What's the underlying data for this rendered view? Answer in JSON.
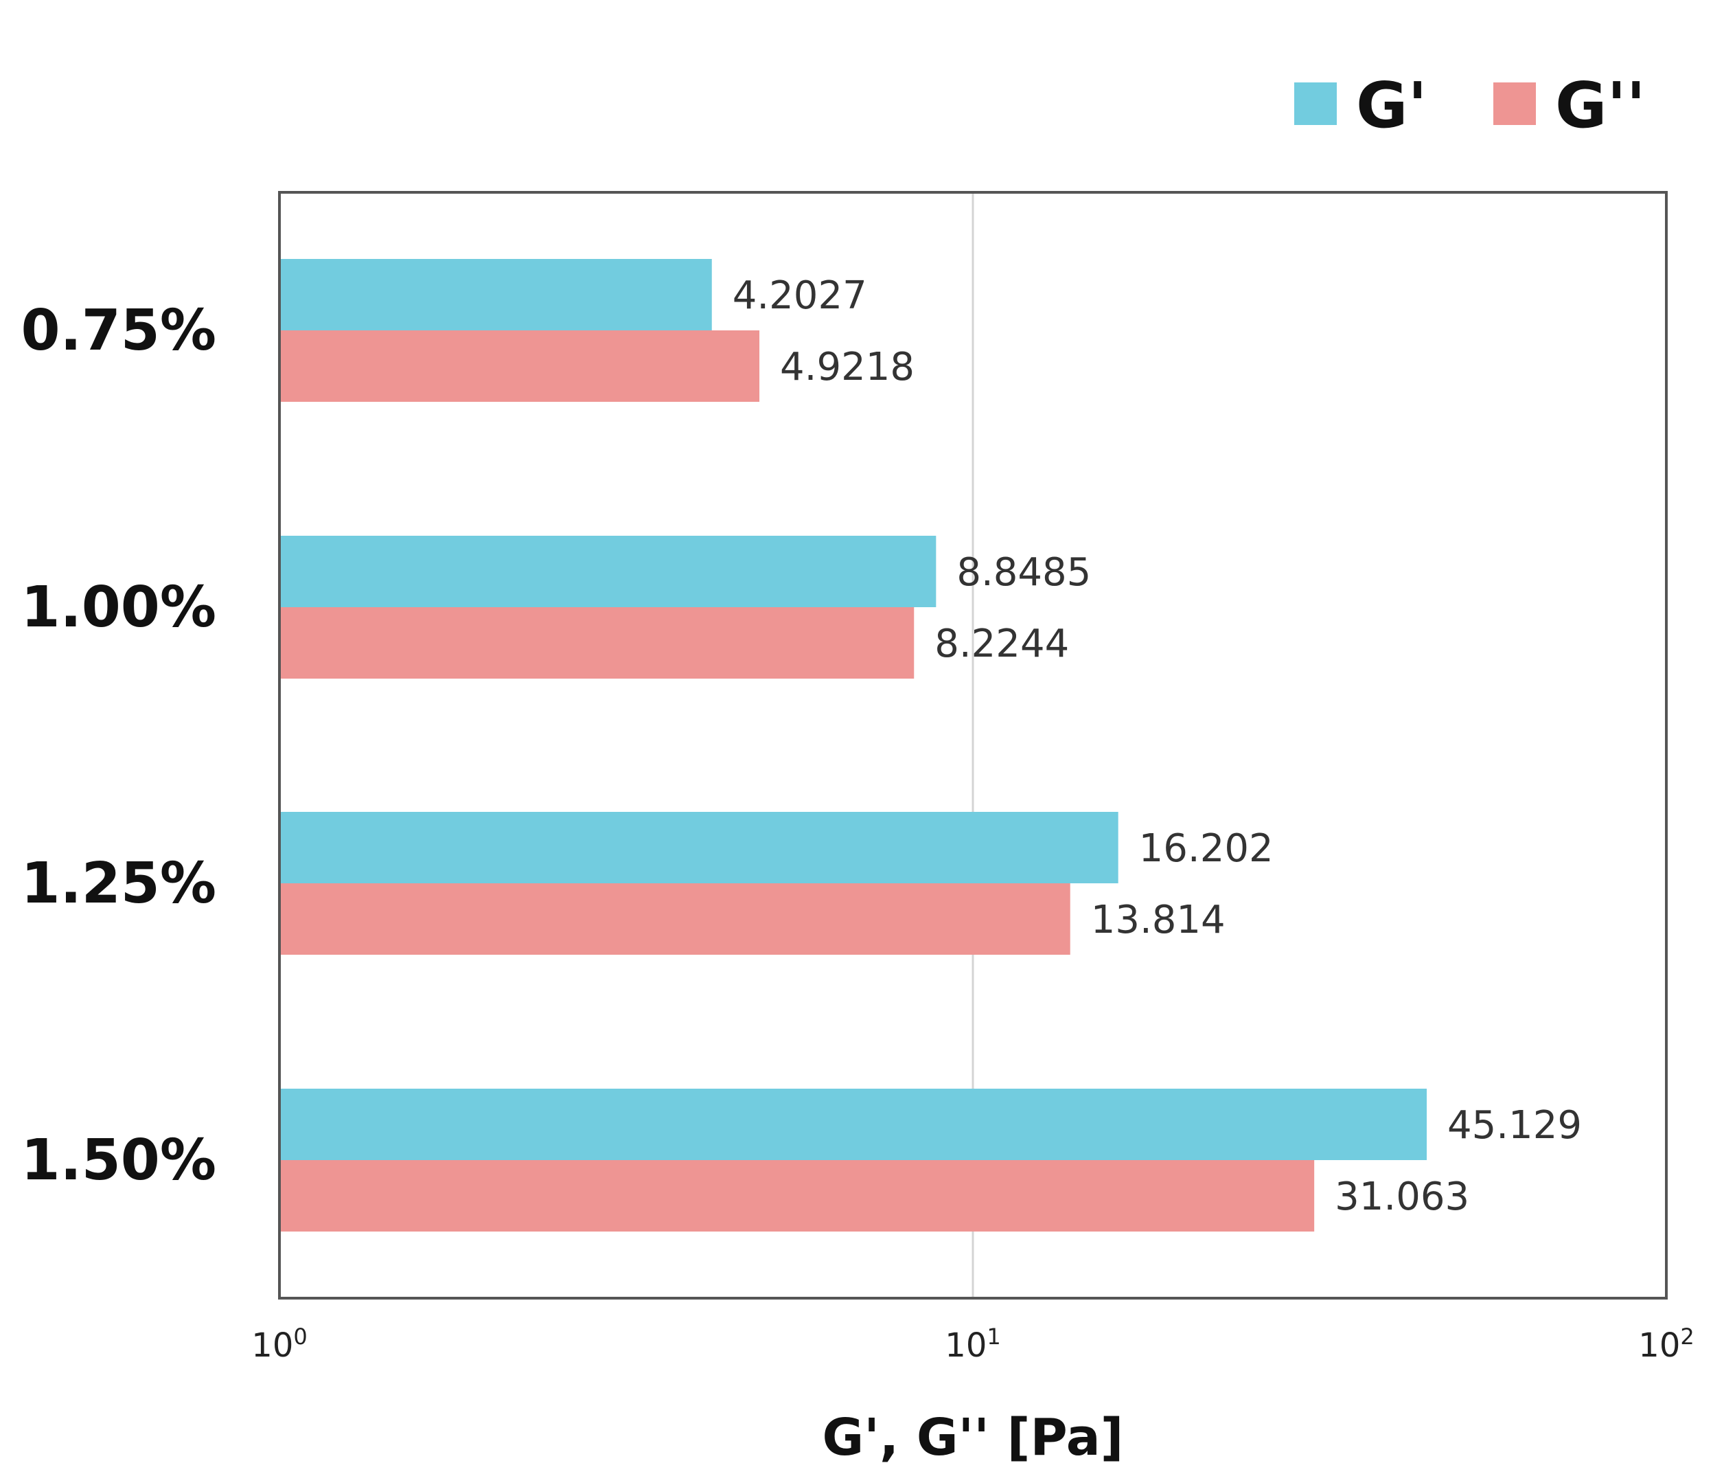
{
  "chart_data": {
    "type": "bar",
    "orientation": "horizontal",
    "scale": "log",
    "categories": [
      "0.75%",
      "1.00%",
      "1.25%",
      "1.50%"
    ],
    "series": [
      {
        "name": "G'",
        "color": "#72CCDF",
        "values": [
          4.2027,
          8.8485,
          16.202,
          45.129
        ],
        "labels": [
          "4.2027",
          "8.8485",
          "16.202",
          "45.129"
        ]
      },
      {
        "name": "G''",
        "color": "#EE9593",
        "values": [
          4.9218,
          8.2244,
          13.814,
          31.063
        ],
        "labels": [
          "4.9218",
          "8.2244",
          "13.814",
          "31.063"
        ]
      }
    ],
    "xlabel": "G', G'' [Pa]",
    "ylabel": "",
    "xlim": [
      1,
      100
    ],
    "ticks": [
      {
        "value": 1,
        "base": "10",
        "exp": "0"
      },
      {
        "value": 10,
        "base": "10",
        "exp": "1"
      },
      {
        "value": 100,
        "base": "10",
        "exp": "2"
      }
    ],
    "grid": true,
    "legend_position": "top-right"
  }
}
